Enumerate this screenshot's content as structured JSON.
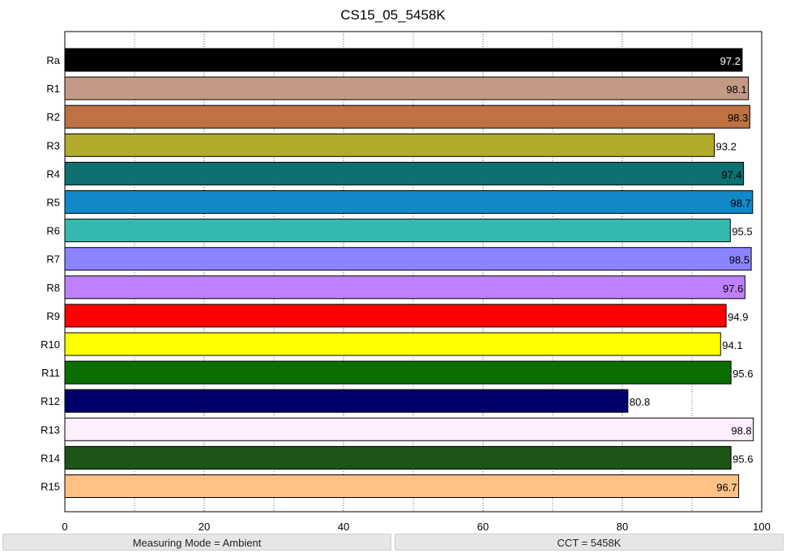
{
  "chart_data": {
    "type": "bar",
    "orientation": "horizontal",
    "title": "CS15_05_5458K",
    "xlabel": "",
    "ylabel": "",
    "xlim": [
      0,
      100
    ],
    "x_ticks": [
      0,
      20,
      40,
      60,
      80,
      100
    ],
    "grid": "dotted vertical lines every 10",
    "categories": [
      "Ra",
      "R1",
      "R2",
      "R3",
      "R4",
      "R5",
      "R6",
      "R7",
      "R8",
      "R9",
      "R10",
      "R11",
      "R12",
      "R13",
      "R14",
      "R15"
    ],
    "values": [
      97.2,
      98.1,
      98.3,
      93.2,
      97.4,
      98.7,
      95.5,
      98.5,
      97.6,
      94.9,
      94.1,
      95.6,
      80.8,
      98.8,
      95.6,
      96.7
    ],
    "value_labels": [
      "97.2",
      "98.1",
      "98.3",
      "93.2",
      "97.4",
      "98.7",
      "95.5",
      "98.5",
      "97.6",
      "94.9",
      "94.1",
      "95.6",
      "80.8",
      "98.8",
      "95.6",
      "96.7"
    ],
    "colors": [
      "#000000",
      "#c49a86",
      "#bf7141",
      "#b0ab2a",
      "#0f7070",
      "#1288c8",
      "#35b8b0",
      "#8a84ff",
      "#bf80ff",
      "#ff0000",
      "#ffff00",
      "#0b6e00",
      "#00006b",
      "#ffeeff",
      "#1b5518",
      "#ffc184"
    ],
    "label_colors": [
      "#ffffff",
      "#000000",
      "#000000",
      "#000000",
      "#000000",
      "#000000",
      "#000000",
      "#000000",
      "#000000",
      "#000000",
      "#000000",
      "#000000",
      "#000000",
      "#000000",
      "#000000",
      "#000000"
    ]
  },
  "status": {
    "left": "Measuring Mode = Ambient",
    "right": "CCT = 5458K"
  }
}
